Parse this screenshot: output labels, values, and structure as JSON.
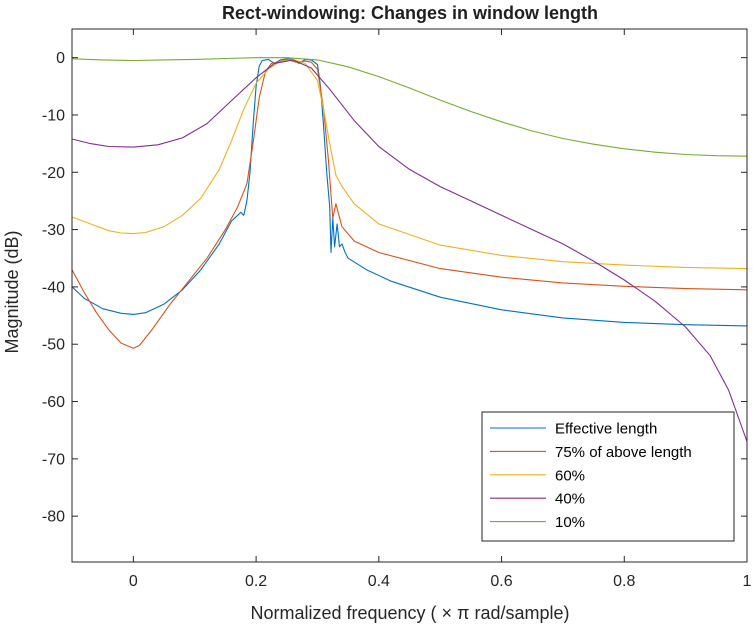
{
  "chart_data": {
    "type": "line",
    "title": "Rect-windowing: Changes in window length",
    "xlabel": "Normalized frequency ( × π rad/sample)",
    "ylabel": "Magnitude (dB)",
    "xlim": [
      -0.1,
      1.0
    ],
    "ylim": [
      -88,
      5
    ],
    "xticks": [
      0,
      0.2,
      0.4,
      0.6,
      0.8,
      1
    ],
    "xtick_labels": [
      "0",
      "0.2",
      "0.4",
      "0.6",
      "0.8",
      "1"
    ],
    "yticks": [
      0,
      -10,
      -20,
      -30,
      -40,
      -50,
      -60,
      -70,
      -80
    ],
    "ytick_labels": [
      "0",
      "-10",
      "-20",
      "-30",
      "-40",
      "-50",
      "-60",
      "-70",
      "-80"
    ],
    "grid": false,
    "legend_position": "bottom-right",
    "series": [
      {
        "name": "Effective length",
        "color": "#0072BD",
        "points": [
          [
            -0.1,
            -40
          ],
          [
            -0.08,
            -42
          ],
          [
            -0.05,
            -43.8
          ],
          [
            -0.02,
            -44.6
          ],
          [
            0,
            -44.8
          ],
          [
            0.02,
            -44.5
          ],
          [
            0.05,
            -43
          ],
          [
            0.08,
            -40.5
          ],
          [
            0.11,
            -37
          ],
          [
            0.14,
            -32.5
          ],
          [
            0.16,
            -28.5
          ],
          [
            0.17,
            -27.5
          ],
          [
            0.175,
            -27
          ],
          [
            0.18,
            -27.5
          ],
          [
            0.185,
            -25
          ],
          [
            0.19,
            -20
          ],
          [
            0.195,
            -12
          ],
          [
            0.2,
            -5
          ],
          [
            0.205,
            -1.5
          ],
          [
            0.21,
            -0.5
          ],
          [
            0.22,
            -0.3
          ],
          [
            0.23,
            -1
          ],
          [
            0.24,
            -0.4
          ],
          [
            0.25,
            -0.2
          ],
          [
            0.26,
            -0.3
          ],
          [
            0.27,
            -1
          ],
          [
            0.28,
            -0.3
          ],
          [
            0.29,
            -0.4
          ],
          [
            0.3,
            -1.2
          ],
          [
            0.305,
            -5
          ],
          [
            0.31,
            -12
          ],
          [
            0.315,
            -20
          ],
          [
            0.32,
            -26
          ],
          [
            0.322,
            -34
          ],
          [
            0.325,
            -28
          ],
          [
            0.328,
            -33
          ],
          [
            0.332,
            -29
          ],
          [
            0.336,
            -33
          ],
          [
            0.34,
            -32.5
          ],
          [
            0.345,
            -34
          ],
          [
            0.35,
            -35
          ],
          [
            0.38,
            -37
          ],
          [
            0.42,
            -39
          ],
          [
            0.5,
            -41.8
          ],
          [
            0.6,
            -44
          ],
          [
            0.7,
            -45.4
          ],
          [
            0.8,
            -46.2
          ],
          [
            0.9,
            -46.6
          ],
          [
            1.0,
            -46.8
          ]
        ]
      },
      {
        "name": "75% of above length",
        "color": "#D95319",
        "points": [
          [
            -0.1,
            -37
          ],
          [
            -0.08,
            -41
          ],
          [
            -0.06,
            -44.5
          ],
          [
            -0.04,
            -47.5
          ],
          [
            -0.02,
            -49.8
          ],
          [
            0,
            -50.7
          ],
          [
            0.01,
            -50.2
          ],
          [
            0.03,
            -47.5
          ],
          [
            0.06,
            -43
          ],
          [
            0.09,
            -39
          ],
          [
            0.12,
            -35
          ],
          [
            0.15,
            -30
          ],
          [
            0.17,
            -26
          ],
          [
            0.185,
            -22
          ],
          [
            0.195,
            -15
          ],
          [
            0.205,
            -7
          ],
          [
            0.215,
            -2.5
          ],
          [
            0.225,
            -1
          ],
          [
            0.235,
            -0.8
          ],
          [
            0.25,
            -0.3
          ],
          [
            0.265,
            -0.8
          ],
          [
            0.28,
            -0.6
          ],
          [
            0.29,
            -0.8
          ],
          [
            0.3,
            -2
          ],
          [
            0.31,
            -9
          ],
          [
            0.318,
            -18
          ],
          [
            0.322,
            -24
          ],
          [
            0.325,
            -28
          ],
          [
            0.33,
            -25.5
          ],
          [
            0.335,
            -27.5
          ],
          [
            0.34,
            -29.5
          ],
          [
            0.36,
            -32
          ],
          [
            0.4,
            -34
          ],
          [
            0.5,
            -36.8
          ],
          [
            0.6,
            -38.3
          ],
          [
            0.7,
            -39.3
          ],
          [
            0.8,
            -39.9
          ],
          [
            0.9,
            -40.3
          ],
          [
            1.0,
            -40.5
          ]
        ]
      },
      {
        "name": "60%",
        "color": "#EDB120",
        "points": [
          [
            -0.1,
            -27.8
          ],
          [
            -0.07,
            -29
          ],
          [
            -0.04,
            -30.2
          ],
          [
            -0.02,
            -30.6
          ],
          [
            0,
            -30.7
          ],
          [
            0.02,
            -30.5
          ],
          [
            0.05,
            -29.5
          ],
          [
            0.08,
            -27.5
          ],
          [
            0.11,
            -24.5
          ],
          [
            0.14,
            -19.5
          ],
          [
            0.16,
            -14.5
          ],
          [
            0.18,
            -9
          ],
          [
            0.2,
            -4.5
          ],
          [
            0.22,
            -2
          ],
          [
            0.24,
            -0.6
          ],
          [
            0.26,
            -0.3
          ],
          [
            0.28,
            -1
          ],
          [
            0.3,
            -4
          ],
          [
            0.31,
            -9
          ],
          [
            0.32,
            -15
          ],
          [
            0.33,
            -20.5
          ],
          [
            0.34,
            -22.5
          ],
          [
            0.36,
            -25.5
          ],
          [
            0.4,
            -29
          ],
          [
            0.5,
            -32.7
          ],
          [
            0.6,
            -34.5
          ],
          [
            0.7,
            -35.6
          ],
          [
            0.8,
            -36.2
          ],
          [
            0.9,
            -36.6
          ],
          [
            1.0,
            -36.8
          ]
        ]
      },
      {
        "name": "40%",
        "color": "#7E2F8E",
        "points": [
          [
            -0.1,
            -14.2
          ],
          [
            -0.07,
            -15
          ],
          [
            -0.04,
            -15.5
          ],
          [
            0,
            -15.6
          ],
          [
            0.04,
            -15.2
          ],
          [
            0.08,
            -14
          ],
          [
            0.12,
            -11.5
          ],
          [
            0.16,
            -7.5
          ],
          [
            0.2,
            -3.5
          ],
          [
            0.23,
            -1
          ],
          [
            0.26,
            -0.4
          ],
          [
            0.29,
            -1.8
          ],
          [
            0.32,
            -5.5
          ],
          [
            0.36,
            -11
          ],
          [
            0.4,
            -15.5
          ],
          [
            0.45,
            -19.5
          ],
          [
            0.5,
            -22.5
          ],
          [
            0.55,
            -25
          ],
          [
            0.6,
            -27.5
          ],
          [
            0.65,
            -30
          ],
          [
            0.7,
            -32.5
          ],
          [
            0.75,
            -35.5
          ],
          [
            0.8,
            -38.8
          ],
          [
            0.85,
            -42.5
          ],
          [
            0.9,
            -47
          ],
          [
            0.94,
            -52
          ],
          [
            0.97,
            -58
          ],
          [
            0.99,
            -64
          ],
          [
            1.0,
            -67
          ]
        ]
      },
      {
        "name": "10%",
        "color": "#77AC30",
        "points": [
          [
            -0.1,
            -0.2
          ],
          [
            -0.05,
            -0.4
          ],
          [
            0,
            -0.5
          ],
          [
            0.05,
            -0.4
          ],
          [
            0.1,
            -0.3
          ],
          [
            0.15,
            -0.15
          ],
          [
            0.2,
            0
          ],
          [
            0.25,
            0
          ],
          [
            0.3,
            -0.4
          ],
          [
            0.35,
            -1.6
          ],
          [
            0.4,
            -3.3
          ],
          [
            0.45,
            -5.3
          ],
          [
            0.5,
            -7.4
          ],
          [
            0.55,
            -9.4
          ],
          [
            0.6,
            -11.2
          ],
          [
            0.65,
            -12.8
          ],
          [
            0.7,
            -14.1
          ],
          [
            0.75,
            -15.1
          ],
          [
            0.8,
            -15.9
          ],
          [
            0.85,
            -16.5
          ],
          [
            0.9,
            -16.9
          ],
          [
            0.95,
            -17.1
          ],
          [
            1.0,
            -17.2
          ]
        ]
      }
    ]
  }
}
